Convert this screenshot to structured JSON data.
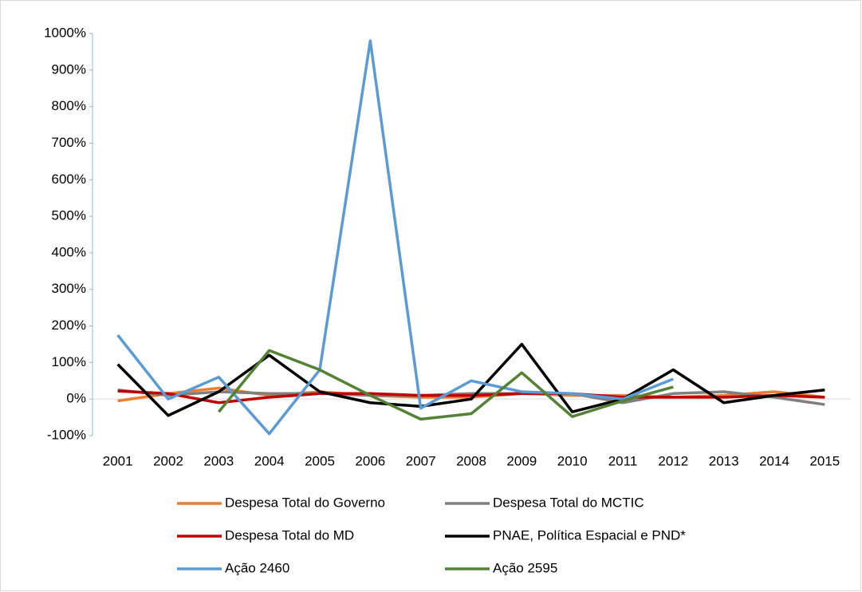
{
  "chart_data": {
    "type": "line",
    "categories": [
      "2001",
      "2002",
      "2003",
      "2004",
      "2005",
      "2006",
      "2007",
      "2008",
      "2009",
      "2010",
      "2011",
      "2012",
      "2013",
      "2014",
      "2015"
    ],
    "ylim": [
      -100,
      1000
    ],
    "yticks": [
      {
        "value": -100,
        "label": "-100%"
      },
      {
        "value": 0,
        "label": "0%"
      },
      {
        "value": 100,
        "label": "100%"
      },
      {
        "value": 200,
        "label": "200%"
      },
      {
        "value": 300,
        "label": "300%"
      },
      {
        "value": 400,
        "label": "400%"
      },
      {
        "value": 500,
        "label": "500%"
      },
      {
        "value": 600,
        "label": "600%"
      },
      {
        "value": 700,
        "label": "700%"
      },
      {
        "value": 800,
        "label": "800%"
      },
      {
        "value": 900,
        "label": "900%"
      },
      {
        "value": 1000,
        "label": "1000%"
      }
    ],
    "grid": false,
    "legend": "bottom",
    "series": [
      {
        "name": "Despesa Total do Governo",
        "color": "#ED7D31",
        "values": [
          -5,
          15,
          30,
          10,
          20,
          10,
          5,
          5,
          15,
          10,
          10,
          5,
          10,
          20,
          5
        ]
      },
      {
        "name": "Despesa Total do MCTIC",
        "color": "#7F7F7F",
        "values": [
          25,
          10,
          20,
          15,
          15,
          10,
          10,
          15,
          15,
          15,
          -10,
          15,
          20,
          5,
          -15
        ]
      },
      {
        "name": "Despesa Total do MD",
        "color": "#C00000",
        "values": [
          22,
          15,
          -10,
          5,
          15,
          15,
          10,
          10,
          15,
          15,
          5,
          5,
          5,
          10,
          5
        ]
      },
      {
        "name": "PNAE, Política Espacial e PND*",
        "color": "#000000",
        "values": [
          95,
          -45,
          20,
          120,
          20,
          -10,
          -20,
          0,
          150,
          -35,
          0,
          80,
          -10,
          10,
          25
        ]
      },
      {
        "name": "Ação 2460",
        "color": "#5B9BD5",
        "values": [
          175,
          0,
          60,
          -95,
          80,
          980,
          -25,
          50,
          20,
          15,
          0,
          55,
          null,
          null,
          null
        ]
      },
      {
        "name": "Ação 2595",
        "color": "#548235",
        "values": [
          null,
          null,
          -35,
          133,
          80,
          10,
          -55,
          -40,
          72,
          -48,
          -5,
          33,
          null,
          null,
          null
        ]
      }
    ]
  }
}
